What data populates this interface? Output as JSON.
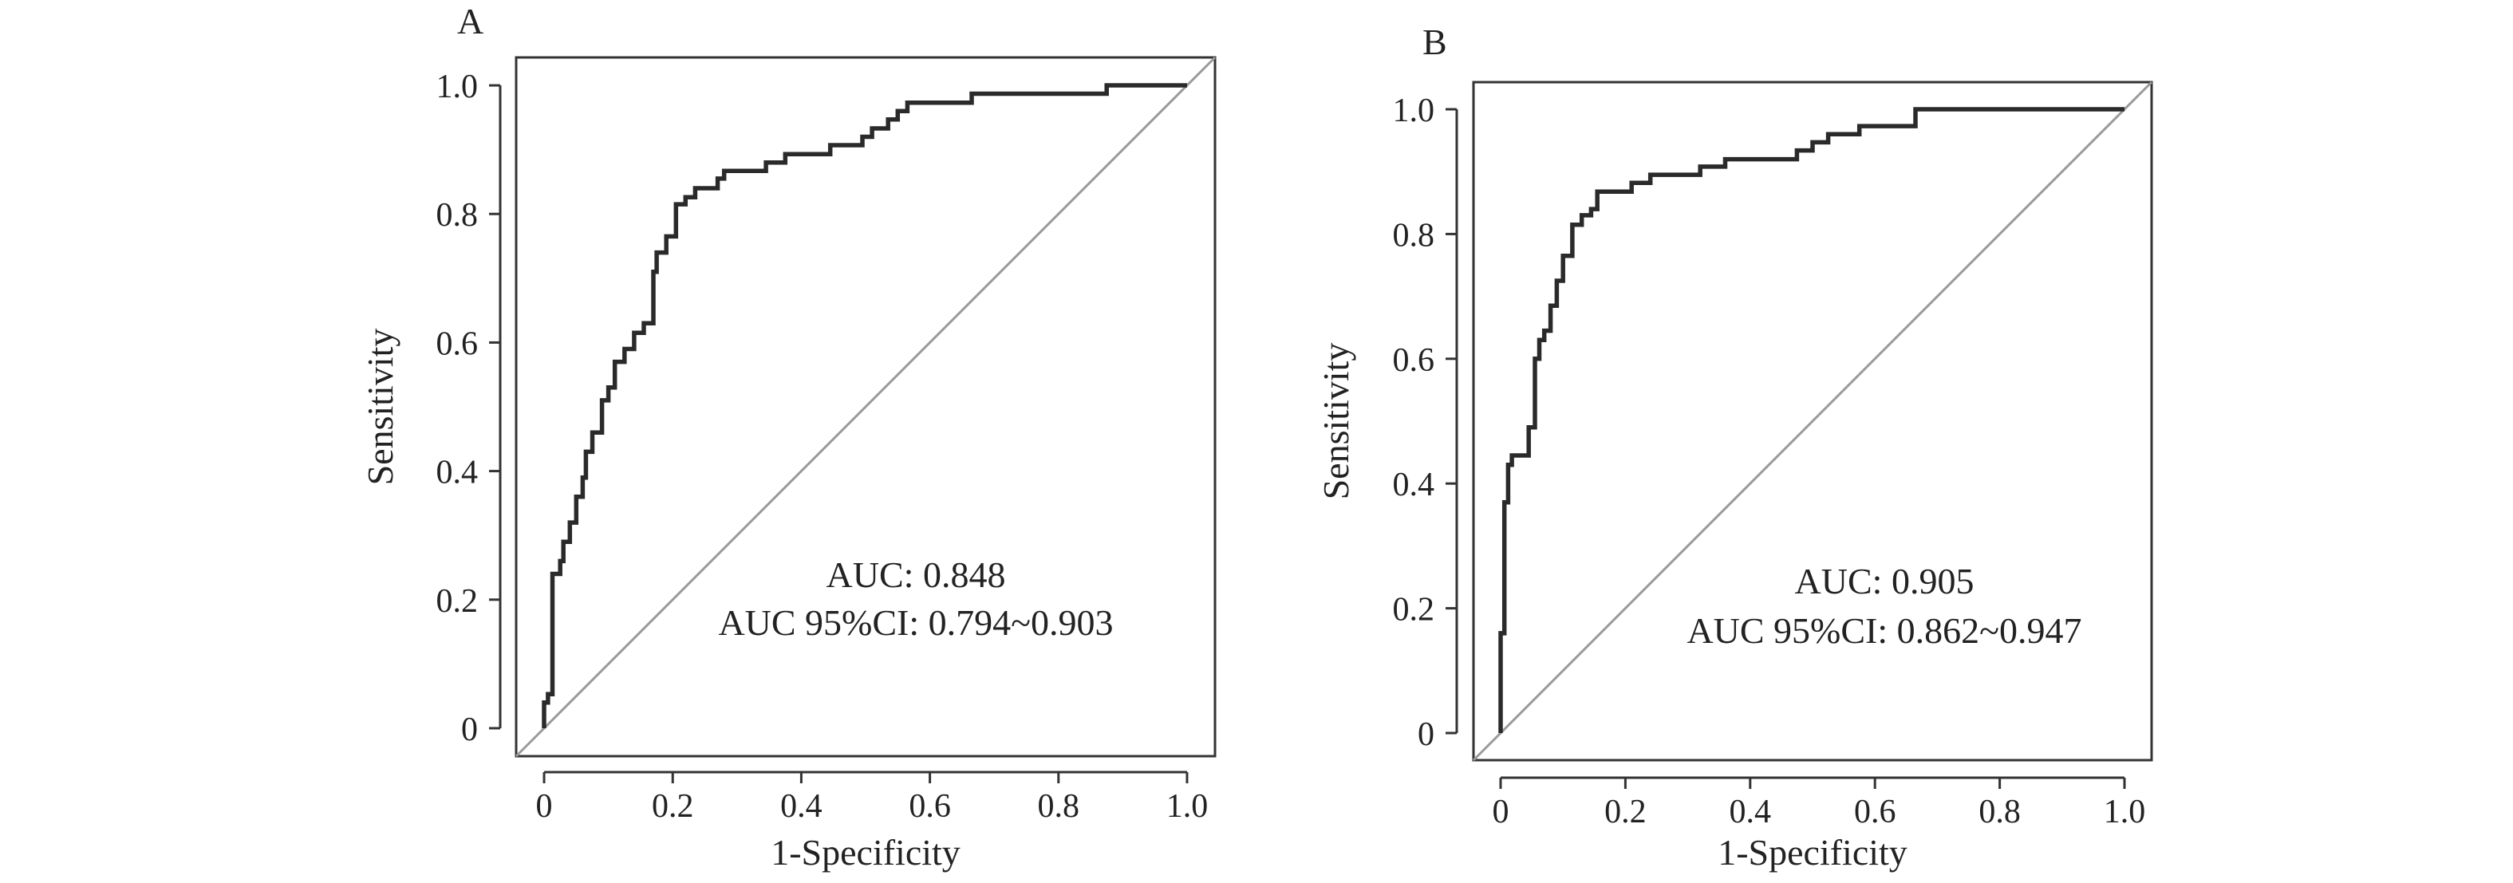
{
  "chart_data": [
    {
      "type": "line",
      "panel_label": "A",
      "xlabel": "1-Specificity",
      "ylabel": "Sensitivity",
      "xlim": [
        0,
        1
      ],
      "ylim": [
        0,
        1
      ],
      "xticks": [
        "0",
        "0.2",
        "0.4",
        "0.6",
        "0.8",
        "1.0"
      ],
      "yticks": [
        "0",
        "0.2",
        "0.4",
        "0.6",
        "0.8",
        "1.0"
      ],
      "grid": false,
      "legend": "none",
      "reference_line": "diagonal",
      "annotations": [
        "AUC: 0.848",
        "AUC 95%CI: 0.794~0.903"
      ],
      "series": [
        {
          "points": [
            [
              0,
              0
            ],
            [
              0,
              0.04
            ],
            [
              0.006,
              0.04
            ],
            [
              0.006,
              0.053
            ],
            [
              0.013,
              0.053
            ],
            [
              0.013,
              0.24
            ],
            [
              0.025,
              0.24
            ],
            [
              0.025,
              0.26
            ],
            [
              0.03,
              0.26
            ],
            [
              0.03,
              0.29
            ],
            [
              0.04,
              0.29
            ],
            [
              0.04,
              0.32
            ],
            [
              0.05,
              0.32
            ],
            [
              0.05,
              0.36
            ],
            [
              0.06,
              0.36
            ],
            [
              0.06,
              0.39
            ],
            [
              0.065,
              0.39
            ],
            [
              0.065,
              0.43
            ],
            [
              0.075,
              0.43
            ],
            [
              0.075,
              0.46
            ],
            [
              0.09,
              0.46
            ],
            [
              0.09,
              0.51
            ],
            [
              0.1,
              0.51
            ],
            [
              0.1,
              0.53
            ],
            [
              0.11,
              0.53
            ],
            [
              0.11,
              0.57
            ],
            [
              0.125,
              0.57
            ],
            [
              0.125,
              0.59
            ],
            [
              0.14,
              0.59
            ],
            [
              0.14,
              0.615
            ],
            [
              0.155,
              0.615
            ],
            [
              0.155,
              0.63
            ],
            [
              0.17,
              0.63
            ],
            [
              0.17,
              0.71
            ],
            [
              0.175,
              0.71
            ],
            [
              0.175,
              0.74
            ],
            [
              0.19,
              0.74
            ],
            [
              0.19,
              0.765
            ],
            [
              0.205,
              0.765
            ],
            [
              0.205,
              0.815
            ],
            [
              0.22,
              0.815
            ],
            [
              0.22,
              0.826
            ],
            [
              0.235,
              0.826
            ],
            [
              0.235,
              0.84
            ],
            [
              0.27,
              0.84
            ],
            [
              0.27,
              0.855
            ],
            [
              0.28,
              0.855
            ],
            [
              0.28,
              0.867
            ],
            [
              0.345,
              0.867
            ],
            [
              0.345,
              0.88
            ],
            [
              0.375,
              0.88
            ],
            [
              0.375,
              0.893
            ],
            [
              0.445,
              0.893
            ],
            [
              0.445,
              0.907
            ],
            [
              0.495,
              0.907
            ],
            [
              0.495,
              0.92
            ],
            [
              0.51,
              0.92
            ],
            [
              0.51,
              0.933
            ],
            [
              0.535,
              0.933
            ],
            [
              0.535,
              0.947
            ],
            [
              0.55,
              0.947
            ],
            [
              0.55,
              0.96
            ],
            [
              0.565,
              0.96
            ],
            [
              0.565,
              0.973
            ],
            [
              0.665,
              0.973
            ],
            [
              0.665,
              0.987
            ],
            [
              0.875,
              0.987
            ],
            [
              0.875,
              1.0
            ],
            [
              1.0,
              1.0
            ]
          ]
        }
      ]
    },
    {
      "type": "line",
      "panel_label": "B",
      "xlabel": "1-Specificity",
      "ylabel": "Sensitivity",
      "xlim": [
        0,
        1
      ],
      "ylim": [
        0,
        1
      ],
      "xticks": [
        "0",
        "0.2",
        "0.4",
        "0.6",
        "0.8",
        "1.0"
      ],
      "yticks": [
        "0",
        "0.2",
        "0.4",
        "0.6",
        "0.8",
        "1.0"
      ],
      "grid": false,
      "legend": "none",
      "reference_line": "diagonal",
      "annotations": [
        "AUC: 0.905",
        "AUC 95%CI: 0.862~0.947"
      ],
      "series": [
        {
          "points": [
            [
              0,
              0
            ],
            [
              0,
              0.16
            ],
            [
              0.006,
              0.16
            ],
            [
              0.006,
              0.37
            ],
            [
              0.012,
              0.37
            ],
            [
              0.012,
              0.43
            ],
            [
              0.018,
              0.43
            ],
            [
              0.018,
              0.445
            ],
            [
              0.045,
              0.445
            ],
            [
              0.045,
              0.49
            ],
            [
              0.055,
              0.49
            ],
            [
              0.055,
              0.6
            ],
            [
              0.062,
              0.6
            ],
            [
              0.062,
              0.63
            ],
            [
              0.07,
              0.63
            ],
            [
              0.07,
              0.645
            ],
            [
              0.08,
              0.645
            ],
            [
              0.08,
              0.685
            ],
            [
              0.09,
              0.685
            ],
            [
              0.09,
              0.725
            ],
            [
              0.1,
              0.725
            ],
            [
              0.1,
              0.765
            ],
            [
              0.115,
              0.765
            ],
            [
              0.115,
              0.815
            ],
            [
              0.13,
              0.815
            ],
            [
              0.13,
              0.83
            ],
            [
              0.145,
              0.83
            ],
            [
              0.145,
              0.84
            ],
            [
              0.155,
              0.84
            ],
            [
              0.155,
              0.868
            ],
            [
              0.21,
              0.868
            ],
            [
              0.21,
              0.882
            ],
            [
              0.24,
              0.882
            ],
            [
              0.24,
              0.895
            ],
            [
              0.32,
              0.895
            ],
            [
              0.32,
              0.908
            ],
            [
              0.36,
              0.908
            ],
            [
              0.36,
              0.92
            ],
            [
              0.475,
              0.92
            ],
            [
              0.475,
              0.934
            ],
            [
              0.5,
              0.934
            ],
            [
              0.5,
              0.947
            ],
            [
              0.525,
              0.947
            ],
            [
              0.525,
              0.96
            ],
            [
              0.575,
              0.96
            ],
            [
              0.575,
              0.973
            ],
            [
              0.665,
              0.973
            ],
            [
              0.665,
              1.0
            ],
            [
              1.0,
              1.0
            ]
          ]
        }
      ]
    }
  ]
}
